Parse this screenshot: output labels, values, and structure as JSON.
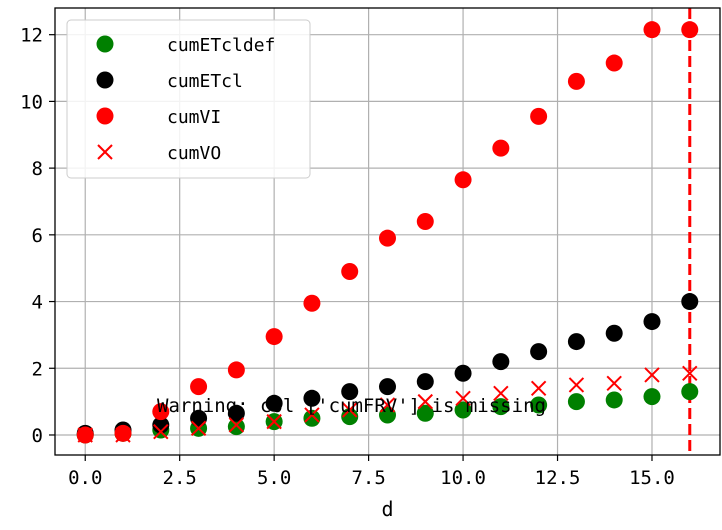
{
  "chart_data": {
    "type": "scatter",
    "xlabel": "d",
    "ylabel": "",
    "xlim": [
      -0.8,
      16.8
    ],
    "ylim": [
      -0.6,
      12.8
    ],
    "xticks": [
      0.0,
      2.5,
      5.0,
      7.5,
      10.0,
      12.5,
      15.0
    ],
    "xtick_labels": [
      "0.0",
      "2.5",
      "5.0",
      "7.5",
      "10.0",
      "12.5",
      "15.0"
    ],
    "yticks": [
      0,
      2,
      4,
      6,
      8,
      10,
      12
    ],
    "ytick_labels": [
      "0",
      "2",
      "4",
      "6",
      "8",
      "10",
      "12"
    ],
    "grid": true,
    "legend_position": "top-left",
    "x": [
      0,
      1,
      2,
      3,
      4,
      5,
      6,
      7,
      8,
      9,
      10,
      11,
      12,
      13,
      14,
      15,
      16
    ],
    "series": [
      {
        "name": "cumETcldef",
        "marker": "circle",
        "color": "#008000",
        "values": [
          0.0,
          0.05,
          0.15,
          0.2,
          0.25,
          0.4,
          0.5,
          0.55,
          0.6,
          0.65,
          0.75,
          0.85,
          0.9,
          1.0,
          1.05,
          1.15,
          1.3
        ]
      },
      {
        "name": "cumETcl",
        "marker": "circle",
        "color": "#000000",
        "values": [
          0.05,
          0.15,
          0.3,
          0.5,
          0.65,
          0.95,
          1.1,
          1.3,
          1.45,
          1.6,
          1.85,
          2.2,
          2.5,
          2.8,
          3.05,
          3.4,
          4.0
        ]
      },
      {
        "name": "cumVI",
        "marker": "circle",
        "color": "#ff0000",
        "values": [
          0.0,
          0.05,
          0.7,
          1.45,
          1.95,
          2.95,
          3.95,
          4.9,
          5.9,
          6.4,
          7.65,
          8.6,
          9.55,
          10.6,
          11.15,
          12.15,
          12.15
        ]
      },
      {
        "name": "cumVO",
        "marker": "x",
        "color": "#ff0000",
        "values": [
          0.0,
          0.0,
          0.1,
          0.2,
          0.3,
          0.4,
          0.6,
          0.75,
          0.9,
          1.0,
          1.1,
          1.25,
          1.4,
          1.5,
          1.55,
          1.8,
          1.85
        ]
      }
    ],
    "vline": {
      "x": 16,
      "color": "#ff0000",
      "style": "dashed"
    },
    "annotations": [
      {
        "text": "Warning: col ['cumFRV'] is missing",
        "x": 1.9,
        "y": 0.9
      }
    ]
  }
}
